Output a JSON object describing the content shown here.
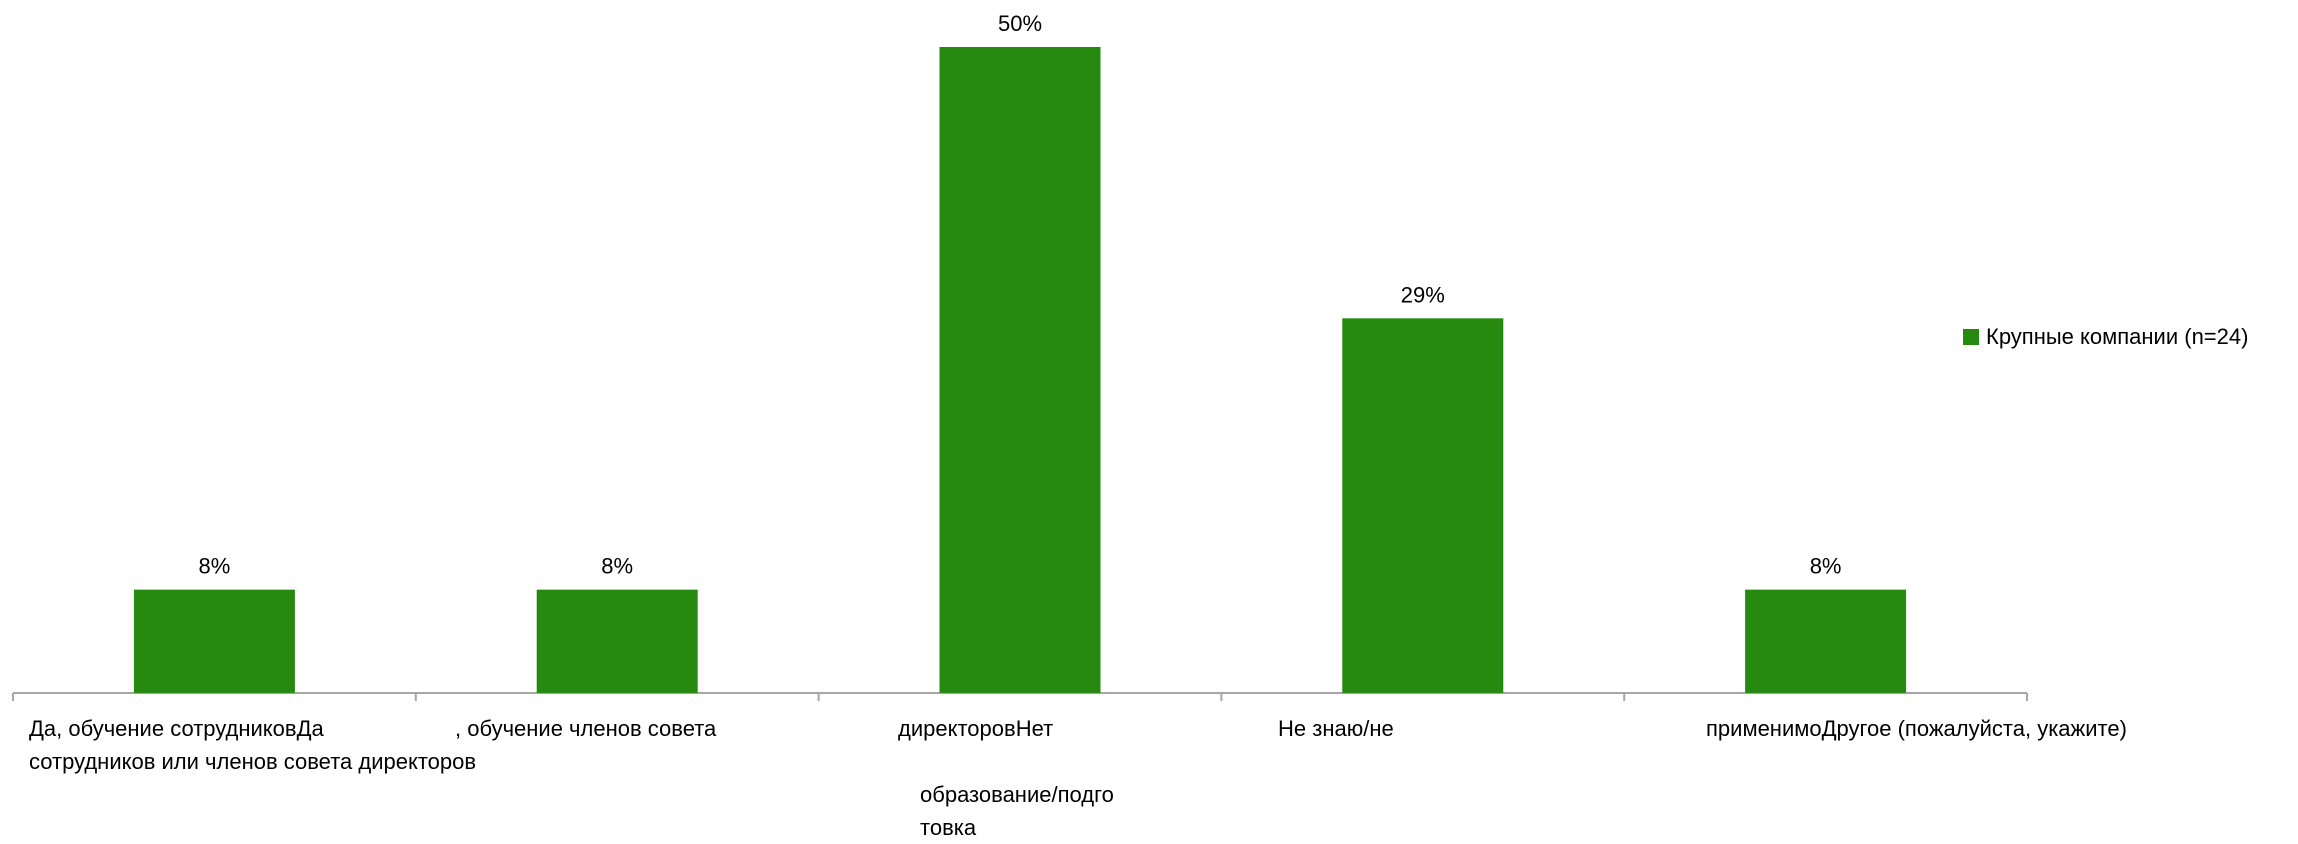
{
  "chart_data": {
    "type": "bar",
    "categories": [
      "Да, обучение сотрудников",
      "Да, обучение членов совета директоров",
      "Да, обучение сотрудников или членов совета директоров",
      "Нет образование/подготовка",
      "Не знаю/не применимо"
    ],
    "category_label_lines": [
      [
        "Да, обучение сотрудниковДа",
        "сотрудников или членов совета директоров"
      ],
      [
        ", обучение членов совета"
      ],
      [
        "директоровНет",
        "",
        "образование/подго",
        "товка"
      ],
      [
        "Не знаю/не"
      ],
      [
        "применимоДругое (пожалуйста, укажите)"
      ]
    ],
    "series": [
      {
        "name": "Крупные компании (n=24)",
        "values": [
          8,
          8,
          50,
          29,
          8
        ]
      }
    ],
    "data_labels": [
      "8%",
      "8%",
      "50%",
      "29%",
      "8%"
    ],
    "ylim": [
      0,
      50
    ],
    "grid": false,
    "legend_position": "right",
    "colors": {
      "bar": "#268a11",
      "axis": "#a6a6a6"
    }
  }
}
